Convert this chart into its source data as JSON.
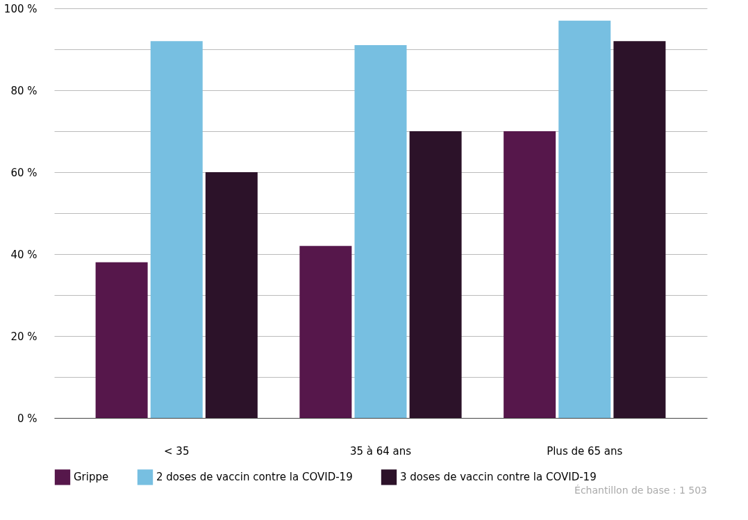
{
  "chart_data": {
    "type": "bar",
    "categories": [
      "< 35",
      "35 à 64 ans",
      "Plus de 65 ans"
    ],
    "series": [
      {
        "name": "Grippe",
        "color": "#56174b",
        "values": [
          38,
          42,
          70
        ]
      },
      {
        "name": "2 doses de vaccin contre la COVID-19",
        "color": "#77bfe1",
        "values": [
          92,
          91,
          97
        ]
      },
      {
        "name": "3 doses de vaccin contre la COVID-19",
        "color": "#2c1229",
        "values": [
          60,
          70,
          92
        ]
      }
    ],
    "ylim": [
      0,
      100
    ],
    "yticks": [
      {
        "value": 0,
        "label": "0 %"
      },
      {
        "value": 10,
        "label": null
      },
      {
        "value": 20,
        "label": "20 %"
      },
      {
        "value": 30,
        "label": null
      },
      {
        "value": 40,
        "label": "40 %"
      },
      {
        "value": 50,
        "label": null
      },
      {
        "value": 60,
        "label": "60 %"
      },
      {
        "value": 70,
        "label": null
      },
      {
        "value": 80,
        "label": "80 %"
      },
      {
        "value": 90,
        "label": null
      },
      {
        "value": 100,
        "label": "100 %"
      }
    ],
    "grid": "y",
    "legend": "bottom",
    "annotations": [
      "Échantillon de base : 1 503"
    ]
  }
}
